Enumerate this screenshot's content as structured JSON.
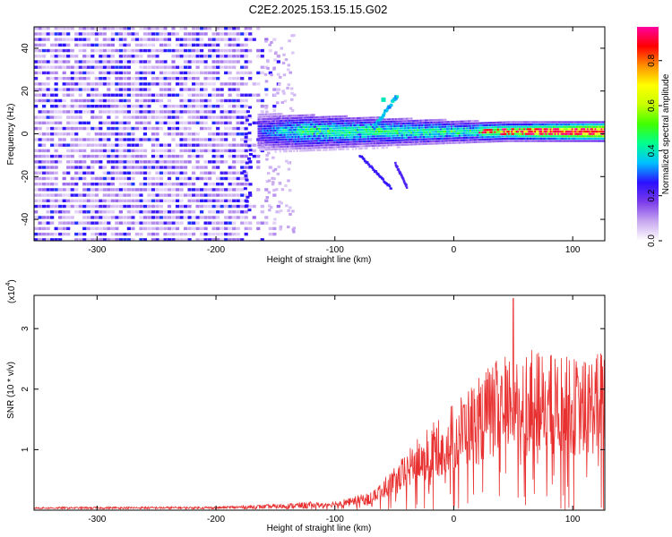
{
  "title": "C2E2.2025.153.15.15.G02",
  "chart_data": [
    {
      "type": "heatmap",
      "xlabel": "Height of straight line (km)",
      "ylabel": "Frequency (Hz)",
      "xlim": [
        -353,
        127
      ],
      "ylim": [
        -50,
        50
      ],
      "xticks": [
        -300,
        -200,
        -100,
        0,
        100
      ],
      "yticks": [
        -40,
        -20,
        0,
        20,
        40
      ],
      "colorbar": {
        "label": "Normalized spectral amplitude",
        "range": [
          0.0,
          0.95
        ],
        "ticks": [
          0.0,
          0.2,
          0.4,
          0.6,
          0.8
        ],
        "tick_labels": [
          "0.0",
          "0.2",
          "0.4",
          "0.6",
          "0.8"
        ],
        "colors": [
          "#ffffff",
          "#c8a8f0",
          "#7a3bea",
          "#2a10ff",
          "#00c0ff",
          "#00ff90",
          "#40ff00",
          "#c8ff00",
          "#ffff00",
          "#ff9000",
          "#ff0000",
          "#ff00a0"
        ]
      },
      "description_regions": [
        {
          "x_range": [
            -353,
            -150
          ],
          "y_range": [
            -50,
            50
          ],
          "level": "low 0.05-0.25 (noise)"
        },
        {
          "x_range": [
            -165,
            127
          ],
          "y_center": 2,
          "level": "0.2-0.95 (signal band)"
        },
        {
          "x_range": [
            -65,
            -45
          ],
          "y_range": [
            -35,
            20
          ],
          "level": "0.2-0.4 (branches)"
        }
      ]
    },
    {
      "type": "line",
      "xlabel": "Height of straight line (km)",
      "ylabel": "SNR (10 * v/v)",
      "exponent_label": "(x10",
      "exponent_power": "4",
      "exponent_close": ")",
      "xlim": [
        -353,
        127
      ],
      "ylim": [
        0,
        3.55
      ],
      "xticks": [
        -300,
        -200,
        -100,
        0,
        100
      ],
      "yticks": [
        1,
        2,
        3
      ],
      "series": [
        {
          "color": "#e83030",
          "envelope": [
            {
              "x": -353,
              "y": 0.03
            },
            {
              "x": -200,
              "y": 0.04
            },
            {
              "x": -150,
              "y": 0.08
            },
            {
              "x": -100,
              "y": 0.15
            },
            {
              "x": -70,
              "y": 0.3
            },
            {
              "x": -50,
              "y": 0.7
            },
            {
              "x": -30,
              "y": 1.2
            },
            {
              "x": -10,
              "y": 1.6
            },
            {
              "x": 10,
              "y": 2.0
            },
            {
              "x": 30,
              "y": 2.4
            },
            {
              "x": 50,
              "y": 2.7
            },
            {
              "x": 80,
              "y": 2.6
            },
            {
              "x": 110,
              "y": 2.5
            },
            {
              "x": 127,
              "y": 2.7
            }
          ],
          "peak": {
            "x": 50,
            "y": 3.5
          }
        }
      ]
    }
  ]
}
